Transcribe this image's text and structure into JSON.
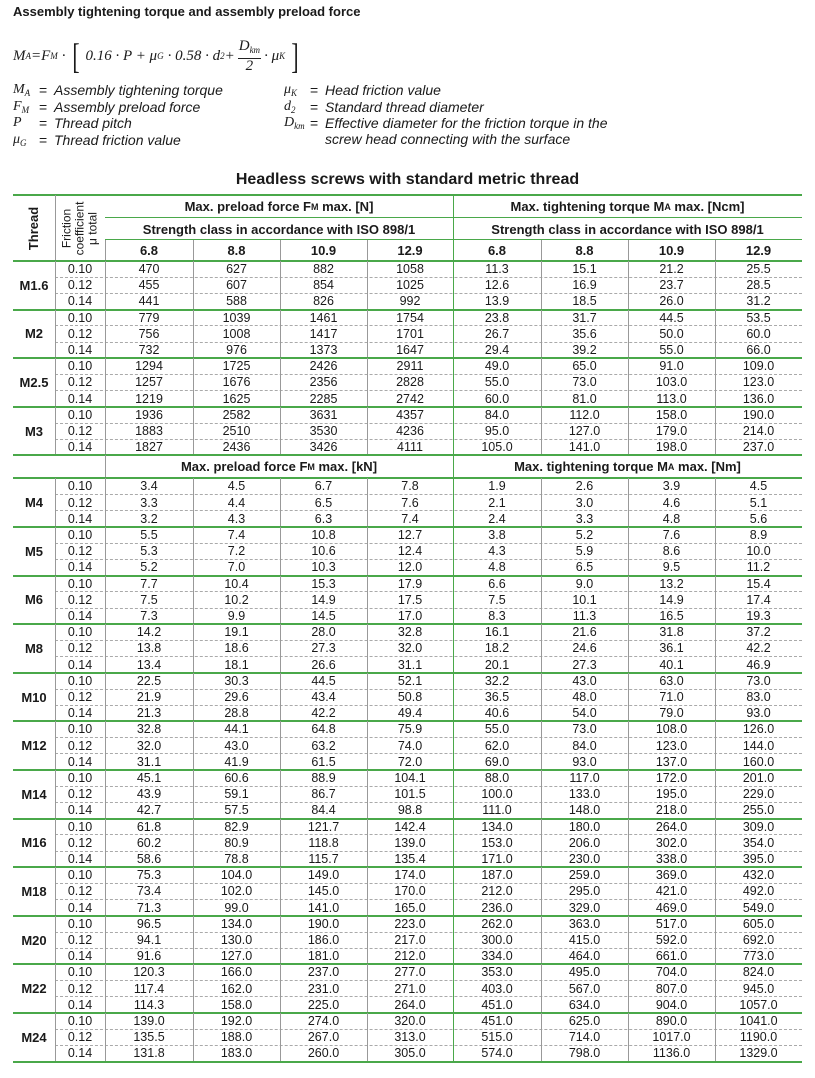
{
  "header": {
    "title": "Assembly tightening torque and assembly preload force"
  },
  "formula": {
    "lhs": "M",
    "lhs_sub": "A",
    "eq": "=F",
    "eq_sub": "M",
    "dot": "·",
    "inner1": "0.16 · P + μ",
    "inner1_sub": "G",
    "inner2": "· 0.58 · d",
    "inner2_sub": "2",
    "plus": "+",
    "num": "D",
    "num_sub": "km",
    "den": "2",
    "inner3": "· μ",
    "inner3_sub": "K"
  },
  "definitions": [
    {
      "symbol": "M",
      "sub": "A",
      "eq": "=",
      "text": "Assembly tightening torque"
    },
    {
      "symbol": "F",
      "sub": "M",
      "eq": "=",
      "text": "Assembly preload force"
    },
    {
      "symbol": "P",
      "sub": "",
      "eq": "=",
      "text": "Thread pitch"
    },
    {
      "symbol": "μ",
      "sub": "G",
      "eq": "=",
      "text": "Thread friction value"
    },
    {
      "symbol": "μ",
      "sub": "K",
      "eq": "=",
      "text": "Head friction value"
    },
    {
      "symbol": "d",
      "sub": "2",
      "eq": "=",
      "text": "Standard thread diameter"
    },
    {
      "symbol": "D",
      "sub": "km",
      "eq": "=",
      "text": "Effective diameter for the friction torque in the screw head connecting with the surface"
    }
  ],
  "table": {
    "title": "Headless screws with standard metric thread",
    "thread_header": "Thread",
    "friction_header": [
      "Friction",
      "coefficient",
      "μ total"
    ],
    "sections": [
      {
        "headers": [
          {
            "text": "Max. preload force F",
            "sub": "M",
            "after": " max. [N]"
          },
          {
            "text": "Max. tightening torque M",
            "sub": "A",
            "after": " max. [Ncm]"
          }
        ],
        "strength": [
          "Strength class in accordance with ISO 898/1",
          "Strength class in accordance with ISO 898/1"
        ],
        "classes": [
          "6.8",
          "8.8",
          "10.9",
          "12.9",
          "6.8",
          "8.8",
          "10.9",
          "12.9"
        ],
        "threads": [
          {
            "name": "M1.6",
            "rows": [
              [
                "0.10",
                "470",
                "627",
                "882",
                "1058",
                "11.3",
                "15.1",
                "21.2",
                "25.5"
              ],
              [
                "0.12",
                "455",
                "607",
                "854",
                "1025",
                "12.6",
                "16.9",
                "23.7",
                "28.5"
              ],
              [
                "0.14",
                "441",
                "588",
                "826",
                "992",
                "13.9",
                "18.5",
                "26.0",
                "31.2"
              ]
            ]
          },
          {
            "name": "M2",
            "rows": [
              [
                "0.10",
                "779",
                "1039",
                "1461",
                "1754",
                "23.8",
                "31.7",
                "44.5",
                "53.5"
              ],
              [
                "0.12",
                "756",
                "1008",
                "1417",
                "1701",
                "26.7",
                "35.6",
                "50.0",
                "60.0"
              ],
              [
                "0.14",
                "732",
                "976",
                "1373",
                "1647",
                "29.4",
                "39.2",
                "55.0",
                "66.0"
              ]
            ]
          },
          {
            "name": "M2.5",
            "rows": [
              [
                "0.10",
                "1294",
                "1725",
                "2426",
                "2911",
                "49.0",
                "65.0",
                "91.0",
                "109.0"
              ],
              [
                "0.12",
                "1257",
                "1676",
                "2356",
                "2828",
                "55.0",
                "73.0",
                "103.0",
                "123.0"
              ],
              [
                "0.14",
                "1219",
                "1625",
                "2285",
                "2742",
                "60.0",
                "81.0",
                "113.0",
                "136.0"
              ]
            ]
          },
          {
            "name": "M3",
            "rows": [
              [
                "0.10",
                "1936",
                "2582",
                "3631",
                "4357",
                "84.0",
                "112.0",
                "158.0",
                "190.0"
              ],
              [
                "0.12",
                "1883",
                "2510",
                "3530",
                "4236",
                "95.0",
                "127.0",
                "179.0",
                "214.0"
              ],
              [
                "0.14",
                "1827",
                "2436",
                "3426",
                "4111",
                "105.0",
                "141.0",
                "198.0",
                "237.0"
              ]
            ]
          }
        ]
      },
      {
        "headers": [
          {
            "text": "Max. preload force F",
            "sub": "M",
            "after": " max. [kN]"
          },
          {
            "text": "Max. tightening torque M",
            "sub": "A",
            "after": " max. [Nm]"
          }
        ],
        "threads": [
          {
            "name": "M4",
            "rows": [
              [
                "0.10",
                "3.4",
                "4.5",
                "6.7",
                "7.8",
                "1.9",
                "2.6",
                "3.9",
                "4.5"
              ],
              [
                "0.12",
                "3.3",
                "4.4",
                "6.5",
                "7.6",
                "2.1",
                "3.0",
                "4.6",
                "5.1"
              ],
              [
                "0.14",
                "3.2",
                "4.3",
                "6.3",
                "7.4",
                "2.4",
                "3.3",
                "4.8",
                "5.6"
              ]
            ]
          },
          {
            "name": "M5",
            "rows": [
              [
                "0.10",
                "5.5",
                "7.4",
                "10.8",
                "12.7",
                "3.8",
                "5.2",
                "7.6",
                "8.9"
              ],
              [
                "0.12",
                "5.3",
                "7.2",
                "10.6",
                "12.4",
                "4.3",
                "5.9",
                "8.6",
                "10.0"
              ],
              [
                "0.14",
                "5.2",
                "7.0",
                "10.3",
                "12.0",
                "4.8",
                "6.5",
                "9.5",
                "11.2"
              ]
            ]
          },
          {
            "name": "M6",
            "rows": [
              [
                "0.10",
                "7.7",
                "10.4",
                "15.3",
                "17.9",
                "6.6",
                "9.0",
                "13.2",
                "15.4"
              ],
              [
                "0.12",
                "7.5",
                "10.2",
                "14.9",
                "17.5",
                "7.5",
                "10.1",
                "14.9",
                "17.4"
              ],
              [
                "0.14",
                "7.3",
                "9.9",
                "14.5",
                "17.0",
                "8.3",
                "11.3",
                "16.5",
                "19.3"
              ]
            ]
          },
          {
            "name": "M8",
            "rows": [
              [
                "0.10",
                "14.2",
                "19.1",
                "28.0",
                "32.8",
                "16.1",
                "21.6",
                "31.8",
                "37.2"
              ],
              [
                "0.12",
                "13.8",
                "18.6",
                "27.3",
                "32.0",
                "18.2",
                "24.6",
                "36.1",
                "42.2"
              ],
              [
                "0.14",
                "13.4",
                "18.1",
                "26.6",
                "31.1",
                "20.1",
                "27.3",
                "40.1",
                "46.9"
              ]
            ]
          },
          {
            "name": "M10",
            "rows": [
              [
                "0.10",
                "22.5",
                "30.3",
                "44.5",
                "52.1",
                "32.2",
                "43.0",
                "63.0",
                "73.0"
              ],
              [
                "0.12",
                "21.9",
                "29.6",
                "43.4",
                "50.8",
                "36.5",
                "48.0",
                "71.0",
                "83.0"
              ],
              [
                "0.14",
                "21.3",
                "28.8",
                "42.2",
                "49.4",
                "40.6",
                "54.0",
                "79.0",
                "93.0"
              ]
            ]
          },
          {
            "name": "M12",
            "rows": [
              [
                "0.10",
                "32.8",
                "44.1",
                "64.8",
                "75.9",
                "55.0",
                "73.0",
                "108.0",
                "126.0"
              ],
              [
                "0.12",
                "32.0",
                "43.0",
                "63.2",
                "74.0",
                "62.0",
                "84.0",
                "123.0",
                "144.0"
              ],
              [
                "0.14",
                "31.1",
                "41.9",
                "61.5",
                "72.0",
                "69.0",
                "93.0",
                "137.0",
                "160.0"
              ]
            ]
          },
          {
            "name": "M14",
            "rows": [
              [
                "0.10",
                "45.1",
                "60.6",
                "88.9",
                "104.1",
                "88.0",
                "117.0",
                "172.0",
                "201.0"
              ],
              [
                "0.12",
                "43.9",
                "59.1",
                "86.7",
                "101.5",
                "100.0",
                "133.0",
                "195.0",
                "229.0"
              ],
              [
                "0.14",
                "42.7",
                "57.5",
                "84.4",
                "98.8",
                "111.0",
                "148.0",
                "218.0",
                "255.0"
              ]
            ]
          },
          {
            "name": "M16",
            "rows": [
              [
                "0.10",
                "61.8",
                "82.9",
                "121.7",
                "142.4",
                "134.0",
                "180.0",
                "264.0",
                "309.0"
              ],
              [
                "0.12",
                "60.2",
                "80.9",
                "118.8",
                "139.0",
                "153.0",
                "206.0",
                "302.0",
                "354.0"
              ],
              [
                "0.14",
                "58.6",
                "78.8",
                "115.7",
                "135.4",
                "171.0",
                "230.0",
                "338.0",
                "395.0"
              ]
            ]
          },
          {
            "name": "M18",
            "rows": [
              [
                "0.10",
                "75.3",
                "104.0",
                "149.0",
                "174.0",
                "187.0",
                "259.0",
                "369.0",
                "432.0"
              ],
              [
                "0.12",
                "73.4",
                "102.0",
                "145.0",
                "170.0",
                "212.0",
                "295.0",
                "421.0",
                "492.0"
              ],
              [
                "0.14",
                "71.3",
                "99.0",
                "141.0",
                "165.0",
                "236.0",
                "329.0",
                "469.0",
                "549.0"
              ]
            ]
          },
          {
            "name": "M20",
            "rows": [
              [
                "0.10",
                "96.5",
                "134.0",
                "190.0",
                "223.0",
                "262.0",
                "363.0",
                "517.0",
                "605.0"
              ],
              [
                "0.12",
                "94.1",
                "130.0",
                "186.0",
                "217.0",
                "300.0",
                "415.0",
                "592.0",
                "692.0"
              ],
              [
                "0.14",
                "91.6",
                "127.0",
                "181.0",
                "212.0",
                "334.0",
                "464.0",
                "661.0",
                "773.0"
              ]
            ]
          },
          {
            "name": "M22",
            "rows": [
              [
                "0.10",
                "120.3",
                "166.0",
                "237.0",
                "277.0",
                "353.0",
                "495.0",
                "704.0",
                "824.0"
              ],
              [
                "0.12",
                "117.4",
                "162.0",
                "231.0",
                "271.0",
                "403.0",
                "567.0",
                "807.0",
                "945.0"
              ],
              [
                "0.14",
                "114.3",
                "158.0",
                "225.0",
                "264.0",
                "451.0",
                "634.0",
                "904.0",
                "1057.0"
              ]
            ]
          },
          {
            "name": "M24",
            "rows": [
              [
                "0.10",
                "139.0",
                "192.0",
                "274.0",
                "320.0",
                "451.0",
                "625.0",
                "890.0",
                "1041.0"
              ],
              [
                "0.12",
                "135.5",
                "188.0",
                "267.0",
                "313.0",
                "515.0",
                "714.0",
                "1017.0",
                "1190.0"
              ],
              [
                "0.14",
                "131.8",
                "183.0",
                "260.0",
                "305.0",
                "574.0",
                "798.0",
                "1136.0",
                "1329.0"
              ]
            ]
          }
        ]
      }
    ]
  }
}
